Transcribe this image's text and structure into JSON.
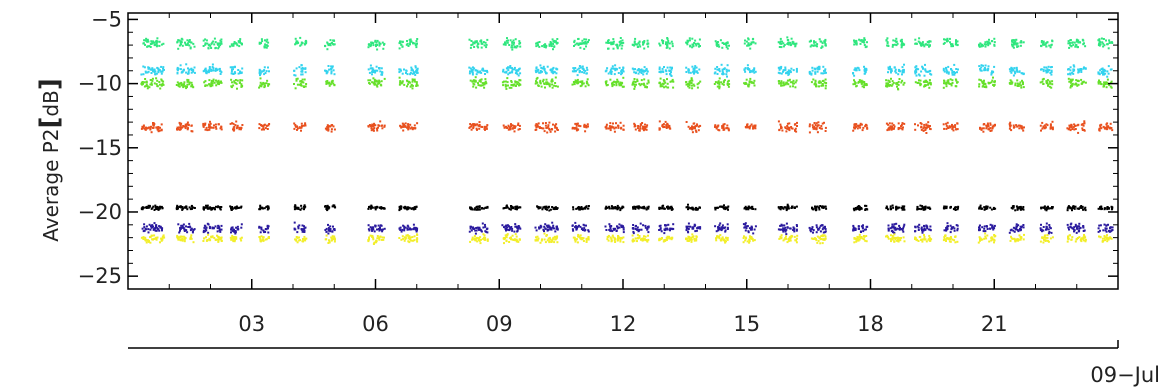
{
  "chart_data": {
    "type": "scatter",
    "ylabel_prefix": "Average  P2",
    "ylabel_unit_open": "[",
    "ylabel_unit": "dB",
    "ylabel_unit_close": "]",
    "ylim": [
      -26,
      -4.5
    ],
    "y_ticks": [
      -5,
      -10,
      -15,
      -20,
      -25
    ],
    "y_tick_labels": [
      "−5",
      "−10",
      "−15",
      "−20",
      "−25"
    ],
    "xlim": [
      0,
      24
    ],
    "x_ticks": [
      3,
      6,
      9,
      12,
      15,
      18,
      21
    ],
    "x_tick_labels": [
      "03",
      "06",
      "09",
      "12",
      "15",
      "18",
      "21"
    ],
    "date_label": "09−Jul",
    "grid": false,
    "legend": "none",
    "series": [
      {
        "color": "#2fe67e",
        "level": -6.8,
        "spread": 0.55
      },
      {
        "color": "#33d3ee",
        "level": -8.9,
        "spread": 0.55
      },
      {
        "color": "#66e02a",
        "level": -9.9,
        "spread": 0.55
      },
      {
        "color": "#e8501e",
        "level": -13.3,
        "spread": 0.5
      },
      {
        "color": "#000000",
        "level": -19.6,
        "spread": 0.25
      },
      {
        "color": "#2a1a9e",
        "level": -21.2,
        "spread": 0.5
      },
      {
        "color": "#f2ee2a",
        "level": -22.0,
        "spread": 0.45
      }
    ],
    "clusters": [
      {
        "x": 0.3,
        "w": 0.55
      },
      {
        "x": 1.15,
        "w": 0.45
      },
      {
        "x": 1.8,
        "w": 0.45
      },
      {
        "x": 2.45,
        "w": 0.3
      },
      {
        "x": 3.15,
        "w": 0.25
      },
      {
        "x": 4.0,
        "w": 0.3
      },
      {
        "x": 4.75,
        "w": 0.25
      },
      {
        "x": 5.8,
        "w": 0.4
      },
      {
        "x": 6.55,
        "w": 0.45
      },
      {
        "x": 8.25,
        "w": 0.45
      },
      {
        "x": 9.05,
        "w": 0.45
      },
      {
        "x": 9.85,
        "w": 0.55
      },
      {
        "x": 10.75,
        "w": 0.4
      },
      {
        "x": 11.55,
        "w": 0.45
      },
      {
        "x": 12.2,
        "w": 0.4
      },
      {
        "x": 12.85,
        "w": 0.35
      },
      {
        "x": 13.5,
        "w": 0.35
      },
      {
        "x": 14.2,
        "w": 0.35
      },
      {
        "x": 14.9,
        "w": 0.3
      },
      {
        "x": 15.75,
        "w": 0.45
      },
      {
        "x": 16.5,
        "w": 0.4
      },
      {
        "x": 17.55,
        "w": 0.35
      },
      {
        "x": 18.35,
        "w": 0.45
      },
      {
        "x": 19.05,
        "w": 0.4
      },
      {
        "x": 19.75,
        "w": 0.35
      },
      {
        "x": 20.6,
        "w": 0.4
      },
      {
        "x": 21.35,
        "w": 0.35
      },
      {
        "x": 22.1,
        "w": 0.3
      },
      {
        "x": 22.75,
        "w": 0.45
      },
      {
        "x": 23.5,
        "w": 0.35
      }
    ]
  }
}
